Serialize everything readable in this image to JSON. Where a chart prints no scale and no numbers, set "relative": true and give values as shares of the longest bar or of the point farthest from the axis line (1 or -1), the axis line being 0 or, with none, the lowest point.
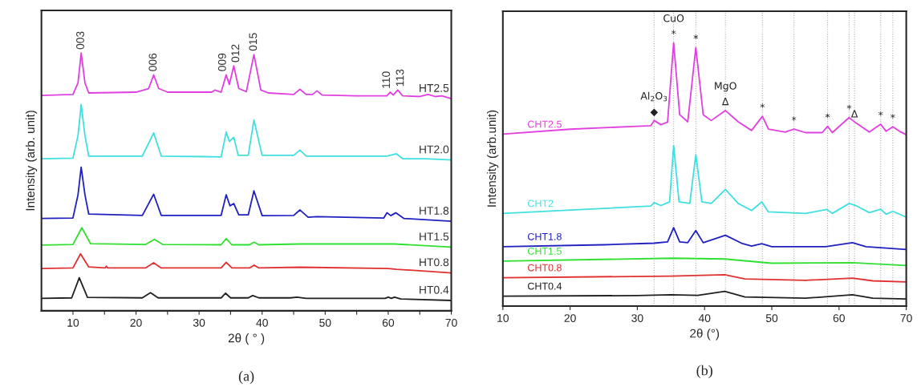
{
  "chart_data": [
    {
      "type": "line",
      "relative": true,
      "xlabel": "2θ ( ° )",
      "ylabel": "Intensity (arb. unit)",
      "subtitle": "(a)",
      "legend": false,
      "grid": false,
      "xlim": [
        5,
        70
      ],
      "xticks": [
        10,
        {
          "value": 15,
          "label": null
        },
        20,
        {
          "value": 25,
          "label": null
        },
        30,
        {
          "value": 35,
          "label": null
        },
        40,
        {
          "value": 45,
          "label": null
        },
        50,
        {
          "value": 55,
          "label": null
        },
        60,
        {
          "value": 65,
          "label": null
        },
        70
      ],
      "series": [
        {
          "name": "HT2.5",
          "color": "#e040e0",
          "x": [
            5,
            10,
            10.8,
            11.3,
            11.9,
            12.5,
            20,
            22,
            22.8,
            23.6,
            25,
            32,
            32.5,
            33.5,
            34.3,
            34.8,
            35.5,
            36.3,
            37.5,
            38.7,
            39.8,
            41,
            45,
            46,
            47,
            48,
            48.7,
            49.5,
            55,
            59.8,
            60.3,
            60.8,
            61.5,
            62.3,
            65,
            66.3,
            67.5,
            68.5,
            70
          ],
          "values": [
            0.835,
            0.839,
            0.884,
            1.0,
            0.884,
            0.845,
            0.848,
            0.862,
            0.915,
            0.862,
            0.848,
            0.848,
            0.856,
            0.848,
            0.915,
            0.878,
            0.95,
            0.862,
            0.85,
            0.994,
            0.856,
            0.845,
            0.839,
            0.859,
            0.839,
            0.839,
            0.853,
            0.837,
            0.834,
            0.834,
            0.848,
            0.837,
            0.856,
            0.834,
            0.831,
            0.839,
            0.831,
            0.834,
            0.823
          ]
        },
        {
          "name": "HT2.0",
          "color": "#40e0e0",
          "x": [
            5,
            10,
            10.8,
            11.3,
            11.9,
            12.5,
            21,
            22.8,
            24,
            33.5,
            34.3,
            34.8,
            35.5,
            36.2,
            37.8,
            38.7,
            40,
            45,
            46,
            47,
            48.5,
            59.3,
            59.8,
            60.3,
            61.3,
            62.3,
            66,
            70
          ],
          "values": [
            0.59,
            0.592,
            0.68,
            0.8,
            0.68,
            0.6,
            0.6,
            0.69,
            0.6,
            0.597,
            0.693,
            0.657,
            0.673,
            0.603,
            0.603,
            0.74,
            0.603,
            0.603,
            0.623,
            0.6,
            0.6,
            0.6,
            0.6,
            0.603,
            0.609,
            0.59,
            0.59,
            0.585
          ]
        },
        {
          "name": "HT1.8",
          "color": "#2020c0",
          "x": [
            5,
            10,
            10.8,
            11.3,
            11.9,
            12.5,
            21,
            22.8,
            24,
            33.5,
            34.3,
            34.9,
            35.5,
            36.3,
            37.8,
            38.7,
            40,
            45,
            46,
            47.3,
            48.7,
            59.3,
            59.8,
            60.4,
            61.2,
            62.5,
            70
          ],
          "values": [
            0.358,
            0.36,
            0.45,
            0.557,
            0.45,
            0.375,
            0.37,
            0.452,
            0.37,
            0.37,
            0.45,
            0.407,
            0.416,
            0.372,
            0.372,
            0.465,
            0.369,
            0.37,
            0.391,
            0.363,
            0.365,
            0.36,
            0.38,
            0.369,
            0.38,
            0.358,
            0.347
          ]
        },
        {
          "name": "HT1.5",
          "color": "#30e030",
          "x": [
            5,
            10,
            11.4,
            12.8,
            21.5,
            22.9,
            24.3,
            33.5,
            34.3,
            35.2,
            38,
            38.7,
            39.5,
            46,
            60,
            61,
            70
          ],
          "values": [
            0.255,
            0.257,
            0.322,
            0.26,
            0.257,
            0.277,
            0.257,
            0.256,
            0.28,
            0.256,
            0.256,
            0.266,
            0.256,
            0.259,
            0.259,
            0.259,
            0.247
          ]
        },
        {
          "name": "HT0.8",
          "color": "#e03030",
          "x": [
            5,
            10,
            11.2,
            12.5,
            15.1,
            15.3,
            15.5,
            21.5,
            22.8,
            24,
            33.5,
            34.3,
            35.2,
            38,
            38.7,
            39.5,
            46,
            60,
            61.3,
            70
          ],
          "values": [
            0.164,
            0.166,
            0.221,
            0.17,
            0.166,
            0.173,
            0.166,
            0.166,
            0.186,
            0.166,
            0.166,
            0.188,
            0.166,
            0.166,
            0.177,
            0.166,
            0.169,
            0.164,
            0.161,
            0.147
          ]
        },
        {
          "name": "HT0.4",
          "color": "#202020",
          "x": [
            5,
            9.8,
            11,
            12.3,
            21,
            22.3,
            23.5,
            33.5,
            34.2,
            35,
            37.8,
            38.5,
            39.5,
            44.5,
            45.5,
            47,
            59.5,
            60,
            60.5,
            61,
            62,
            70
          ],
          "values": [
            0.048,
            0.05,
            0.128,
            0.052,
            0.05,
            0.07,
            0.05,
            0.05,
            0.068,
            0.05,
            0.05,
            0.059,
            0.05,
            0.05,
            0.053,
            0.048,
            0.048,
            0.053,
            0.048,
            0.053,
            0.046,
            0.04
          ]
        }
      ],
      "annotations": [
        {
          "text": "003",
          "x": 11.3,
          "y": 1.0
        },
        {
          "text": "006",
          "x": 22.8,
          "y": 0.915
        },
        {
          "text": "009",
          "x": 33.8,
          "y": 0.915
        },
        {
          "text": "012",
          "x": 35.9,
          "y": 0.95
        },
        {
          "text": "015",
          "x": 38.7,
          "y": 0.994
        },
        {
          "text": "110",
          "x": 59.8,
          "y": 0.848
        },
        {
          "text": "113",
          "x": 62.0,
          "y": 0.856
        }
      ]
    },
    {
      "type": "line",
      "relative": true,
      "xlabel": "2θ (°)",
      "ylabel": "Intensity (arb.unit)",
      "subtitle": "(b)",
      "legend": false,
      "grid": false,
      "xlim": [
        10,
        70
      ],
      "xticks": [
        10,
        20,
        30,
        40,
        50,
        60,
        70
      ],
      "series": [
        {
          "name": "CHT2.5",
          "color": "#e040e0",
          "x": [
            10,
            20,
            30,
            32,
            32.5,
            33.5,
            34.5,
            35.4,
            36.3,
            37.5,
            38.7,
            39.8,
            41,
            43.1,
            45,
            47,
            48.6,
            49.5,
            52,
            53.3,
            55,
            57.5,
            58.3,
            59,
            61.5,
            62.5,
            64.5,
            66.2,
            67,
            68,
            69,
            70
          ],
          "values": [
            0.653,
            0.672,
            0.683,
            0.685,
            0.705,
            0.689,
            0.699,
            1.0,
            0.727,
            0.7,
            0.982,
            0.727,
            0.705,
            0.743,
            0.7,
            0.667,
            0.721,
            0.672,
            0.661,
            0.672,
            0.659,
            0.659,
            0.683,
            0.659,
            0.716,
            0.696,
            0.661,
            0.691,
            0.664,
            0.681,
            0.664,
            0.651
          ]
        },
        {
          "name": "CHT2",
          "color": "#40e0e0",
          "x": [
            10,
            25,
            32,
            32.5,
            33.5,
            34.8,
            35.4,
            36.2,
            37.8,
            38.7,
            39.6,
            41,
            43.1,
            45,
            47,
            48.5,
            49.5,
            55,
            58.2,
            59,
            61.5,
            62.5,
            64.5,
            66.2,
            67,
            68,
            70
          ],
          "values": [
            0.352,
            0.371,
            0.38,
            0.393,
            0.382,
            0.396,
            0.61,
            0.396,
            0.39,
            0.575,
            0.396,
            0.39,
            0.443,
            0.39,
            0.363,
            0.396,
            0.358,
            0.352,
            0.367,
            0.352,
            0.39,
            0.382,
            0.355,
            0.368,
            0.349,
            0.36,
            0.338
          ]
        },
        {
          "name": "CHT1.8",
          "color": "#2020c0",
          "x": [
            10,
            25,
            32.5,
            34.5,
            35.4,
            36.3,
            37.5,
            38.7,
            39.8,
            43.1,
            45.5,
            47,
            48.5,
            50,
            58,
            62,
            64,
            70
          ],
          "values": [
            0.226,
            0.233,
            0.239,
            0.244,
            0.298,
            0.244,
            0.241,
            0.287,
            0.241,
            0.269,
            0.239,
            0.228,
            0.237,
            0.226,
            0.226,
            0.241,
            0.226,
            0.215
          ]
        },
        {
          "name": "CHT1.5",
          "color": "#30e030",
          "x": [
            10,
            35.3,
            43,
            50,
            62,
            70
          ],
          "values": [
            0.171,
            0.182,
            0.179,
            0.163,
            0.165,
            0.154
          ]
        },
        {
          "name": "CHT0.8",
          "color": "#e03030",
          "x": [
            10,
            35,
            43,
            46,
            55,
            62,
            65,
            70
          ],
          "values": [
            0.108,
            0.114,
            0.119,
            0.103,
            0.098,
            0.106,
            0.096,
            0.092
          ]
        },
        {
          "name": "CHT0.4",
          "color": "#202020",
          "x": [
            10,
            30,
            35,
            39,
            43,
            46,
            55,
            62,
            65,
            70
          ],
          "values": [
            0.038,
            0.04,
            0.043,
            0.041,
            0.056,
            0.035,
            0.03,
            0.043,
            0.03,
            0.027
          ]
        }
      ],
      "ref_lines": [
        {
          "axis": "x",
          "value": 32.5,
          "color": "#b0b0b0",
          "line_style": "dotted"
        },
        {
          "axis": "x",
          "value": 35.4,
          "color": "#b0b0b0",
          "line_style": "dotted"
        },
        {
          "axis": "x",
          "value": 38.7,
          "color": "#b0b0b0",
          "line_style": "dotted"
        },
        {
          "axis": "x",
          "value": 43.1,
          "color": "#b0b0b0",
          "line_style": "dotted"
        },
        {
          "axis": "x",
          "value": 48.6,
          "color": "#b0b0b0",
          "line_style": "dotted"
        },
        {
          "axis": "x",
          "value": 53.3,
          "color": "#b0b0b0",
          "line_style": "dotted"
        },
        {
          "axis": "x",
          "value": 58.3,
          "color": "#b0b0b0",
          "line_style": "dotted"
        },
        {
          "axis": "x",
          "value": 61.5,
          "color": "#b0b0b0",
          "line_style": "dotted"
        },
        {
          "axis": "x",
          "value": 62.3,
          "color": "#b0b0b0",
          "line_style": "dotted"
        },
        {
          "axis": "x",
          "value": 66.2,
          "color": "#b0b0b0",
          "line_style": "dotted"
        },
        {
          "axis": "x",
          "value": 68.0,
          "color": "#b0b0b0",
          "line_style": "dotted"
        }
      ],
      "annotations": [
        {
          "text": "◆",
          "x": 32.5,
          "y": 0.705
        },
        {
          "text": "Al$_{2}$O$_{3}$",
          "x": 32.5,
          "y": 0.705
        },
        {
          "text": "*",
          "x": 35.4,
          "y": 1.0
        },
        {
          "text": "CuO",
          "x": 35.4,
          "y": 1.0
        },
        {
          "text": "*",
          "x": 38.7,
          "y": 0.982
        },
        {
          "text": "Δ",
          "x": 43.1,
          "y": 0.743
        },
        {
          "text": "MgO",
          "x": 43.1,
          "y": 0.743
        },
        {
          "text": "*",
          "x": 48.6,
          "y": 0.721
        },
        {
          "text": "*",
          "x": 53.3,
          "y": 0.672
        },
        {
          "text": "*",
          "x": 58.3,
          "y": 0.683
        },
        {
          "text": "*",
          "x": 61.5,
          "y": 0.716
        },
        {
          "text": "Δ",
          "x": 62.3,
          "y": 0.696
        },
        {
          "text": "*",
          "x": 66.2,
          "y": 0.691
        },
        {
          "text": "*",
          "x": 68.0,
          "y": 0.681
        }
      ]
    }
  ]
}
